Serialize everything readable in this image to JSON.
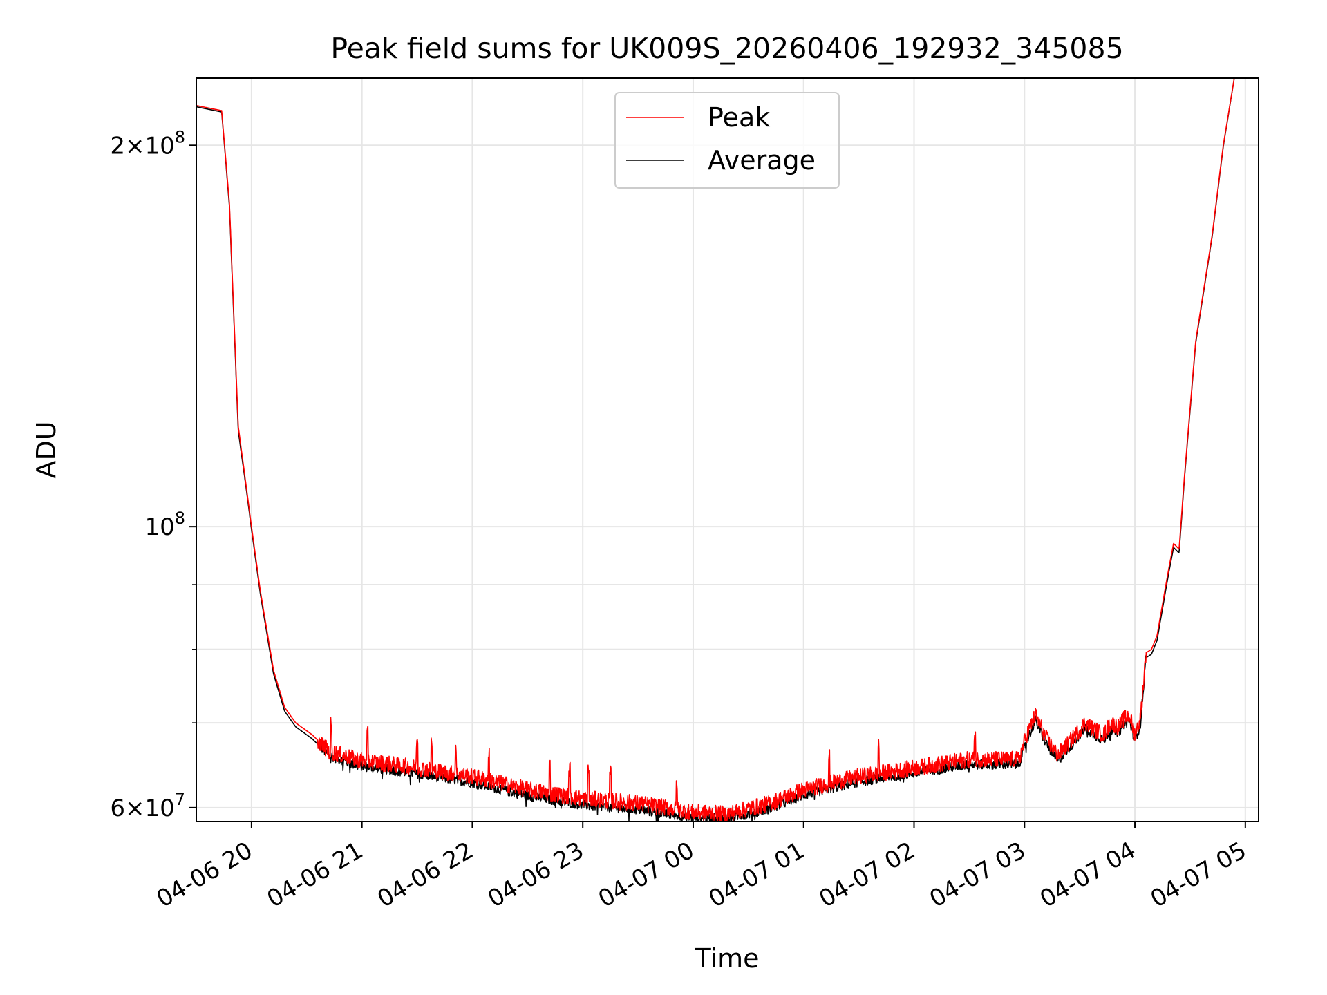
{
  "chart_data": {
    "type": "line",
    "title": "Peak field sums for UK009S_20260406_192932_345085",
    "xlabel": "Time",
    "ylabel": "ADU",
    "yscale": "log",
    "grid": true,
    "legend_position": "top-center",
    "xlim_hours": [
      -0.5,
      9.12
    ],
    "ylim": [
      58500000,
      226000000
    ],
    "x_ticks": [
      {
        "hour": 0,
        "label": "04-06 20"
      },
      {
        "hour": 1,
        "label": "04-06 21"
      },
      {
        "hour": 2,
        "label": "04-06 22"
      },
      {
        "hour": 3,
        "label": "04-06 23"
      },
      {
        "hour": 4,
        "label": "04-07 00"
      },
      {
        "hour": 5,
        "label": "04-07 01"
      },
      {
        "hour": 6,
        "label": "04-07 02"
      },
      {
        "hour": 7,
        "label": "04-07 03"
      },
      {
        "hour": 8,
        "label": "04-07 04"
      },
      {
        "hour": 9,
        "label": "04-07 05"
      }
    ],
    "y_major_ticks": [
      {
        "value": 60000000,
        "base": "6",
        "mult": "×",
        "pow": "10",
        "exp": "7"
      },
      {
        "value": 100000000,
        "base": "",
        "mult": "",
        "pow": "10",
        "exp": "8"
      },
      {
        "value": 200000000,
        "base": "2",
        "mult": "×",
        "pow": "10",
        "exp": "8"
      }
    ],
    "y_minor_grid": [
      70000000,
      80000000,
      90000000
    ],
    "x_unit_note": "x values in hours relative to 04-06 20:00",
    "series": [
      {
        "name": "Peak",
        "color": "#ff0000",
        "x": [
          -0.5,
          -0.27,
          -0.2,
          -0.12,
          -0.05,
          0.0,
          0.08,
          0.2,
          0.3,
          0.4,
          0.55,
          0.7,
          0.95,
          1.5,
          2.0,
          2.5,
          3.0,
          3.5,
          4.0,
          4.3,
          4.7,
          5.0,
          5.5,
          6.0,
          6.5,
          6.95,
          7.02,
          7.1,
          7.2,
          7.3,
          7.4,
          7.55,
          7.65,
          7.72,
          7.78,
          7.85,
          7.9,
          7.95,
          8.0,
          8.05,
          8.1,
          8.15,
          8.2,
          8.3,
          8.35,
          8.4,
          8.45,
          8.55,
          8.7,
          8.8,
          8.9,
          9.12
        ],
        "values": [
          215000000,
          213000000,
          180000000,
          120000000,
          108000000,
          100000000,
          89000000,
          77000000,
          72000000,
          70000000,
          68500000,
          66500000,
          65500000,
          64500000,
          63500000,
          62000000,
          61000000,
          60500000,
          59500000,
          59300000,
          60500000,
          62000000,
          63500000,
          64500000,
          65500000,
          65500000,
          68500000,
          71000000,
          68000000,
          66000000,
          67500000,
          70000000,
          69000000,
          68500000,
          70000000,
          69500000,
          70500000,
          71000000,
          68500000,
          70500000,
          79500000,
          80000000,
          82000000,
          92000000,
          97000000,
          96000000,
          110000000,
          140000000,
          170000000,
          200000000,
          226000000,
          226000000
        ]
      },
      {
        "name": "Average",
        "color": "#000000",
        "x": [
          -0.5,
          -0.27,
          -0.2,
          -0.12,
          -0.05,
          0.0,
          0.08,
          0.2,
          0.3,
          0.4,
          0.55,
          0.7,
          0.95,
          1.5,
          2.0,
          2.5,
          3.0,
          3.5,
          4.0,
          4.3,
          4.7,
          5.0,
          5.5,
          6.0,
          6.5,
          6.95,
          7.02,
          7.1,
          7.2,
          7.3,
          7.4,
          7.55,
          7.65,
          7.72,
          7.78,
          7.85,
          7.9,
          7.95,
          8.0,
          8.05,
          8.1,
          8.15,
          8.2,
          8.3,
          8.35,
          8.4,
          8.45,
          8.55,
          8.7,
          8.8,
          8.9,
          9.12
        ],
        "values": [
          214500000,
          212500000,
          179000000,
          119000000,
          107500000,
          99500000,
          88500000,
          76500000,
          71500000,
          69500000,
          68000000,
          66000000,
          64800000,
          63800000,
          62800000,
          61300000,
          60300000,
          59800000,
          58900000,
          58800000,
          59900000,
          61400000,
          62900000,
          63900000,
          64900000,
          64900000,
          67800000,
          70300000,
          67300000,
          65300000,
          66800000,
          69300000,
          68300000,
          67800000,
          69300000,
          68800000,
          69800000,
          70300000,
          67800000,
          69800000,
          78800000,
          79300000,
          81300000,
          91300000,
          96300000,
          95300000,
          109500000,
          139500000,
          169500000,
          199500000,
          226000000,
          226000000
        ]
      }
    ]
  }
}
